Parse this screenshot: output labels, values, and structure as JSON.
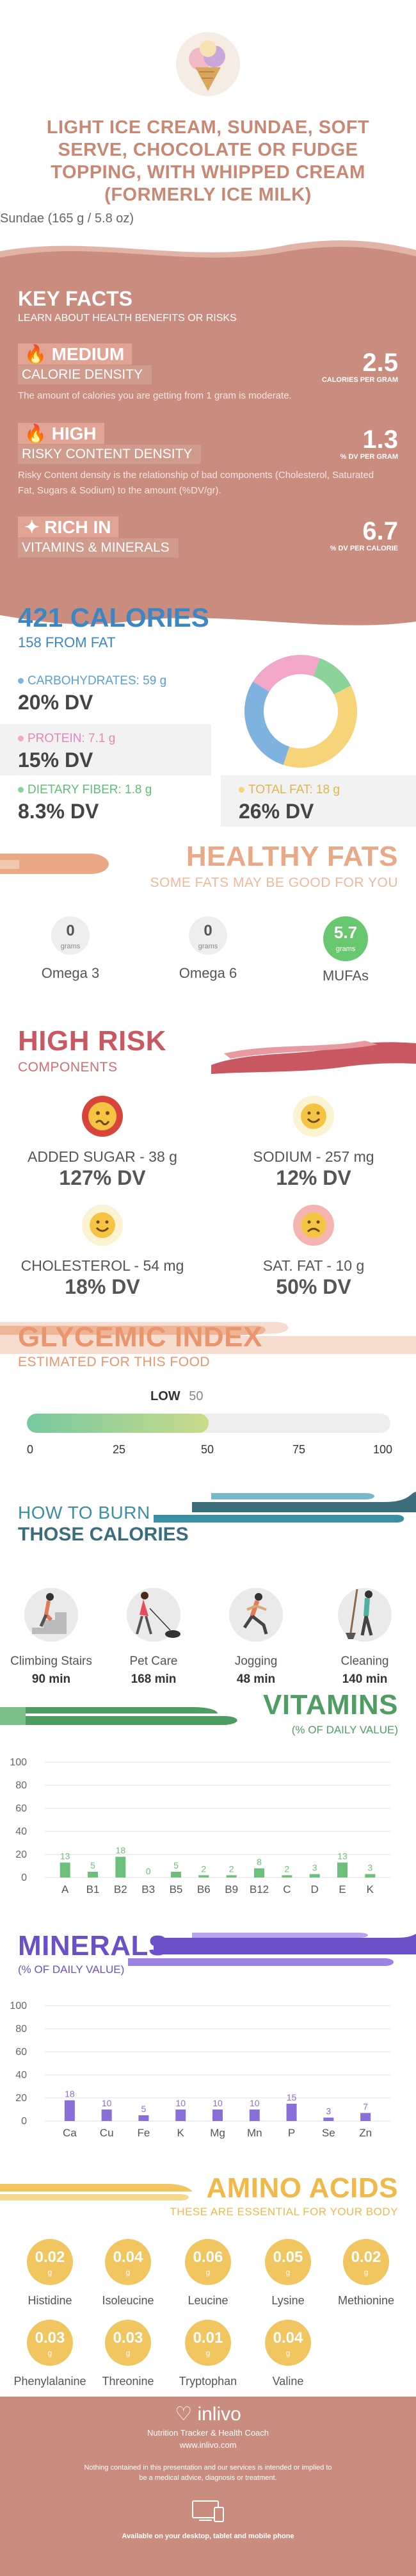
{
  "header": {
    "title": "LIGHT ICE CREAM, SUNDAE, SOFT SERVE, CHOCOLATE OR FUDGE TOPPING, WITH WHIPPED CREAM (FORMERLY ICE MILK)",
    "serving": "Sundae (165 g / 5.8 oz)"
  },
  "key_facts": {
    "title": "KEY FACTS",
    "subtitle": "LEARN ABOUT HEALTH BENEFITS OR RISKS",
    "items": [
      {
        "tag": "MEDIUM",
        "label": "CALORIE DENSITY",
        "value": "2.5",
        "unit": "CALORIES PER GRAM",
        "desc": "The amount of calories you are getting from 1 gram is moderate."
      },
      {
        "tag": "HIGH",
        "label": "RISKY CONTENT DENSITY",
        "value": "1.3",
        "unit": "% DV PER GRAM",
        "desc": "Risky Content density is the relationship of bad components (Cholesterol, Saturated Fat, Sugars & Sodium) to the amount (%DV/gr)."
      },
      {
        "tag": "RICH IN",
        "label": "VITAMINS & MINERALS",
        "value": "6.7",
        "unit": "% DV PER CALORIE"
      }
    ]
  },
  "calories": {
    "title": "421 CALORIES",
    "subtitle": "158 FROM FAT",
    "carbs_label": "CARBOHYDRATES: 59 g",
    "carbs_dv": "20% DV",
    "protein_label": "PROTEIN: 7.1 g",
    "protein_dv": "15% DV",
    "fiber_label": "DIETARY FIBER: 1.8 g",
    "fiber_dv": "8.3% DV",
    "fat_label": "TOTAL FAT: 18 g",
    "fat_dv": "26% DV",
    "colors": {
      "carbs": "#7fb2df",
      "protein": "#f2a6c8",
      "fiber": "#8cd39a",
      "fat": "#f6d47a"
    }
  },
  "healthy_fats": {
    "title": "HEALTHY FATS",
    "subtitle": "SOME FATS MAY BE GOOD FOR YOU",
    "unit": "grams",
    "items": [
      {
        "value": "0",
        "name": "Omega 3"
      },
      {
        "value": "0",
        "name": "Omega 6"
      },
      {
        "value": "5.7",
        "name": "MUFAs"
      }
    ]
  },
  "high_risk": {
    "title": "HIGH RISK",
    "subtitle": "COMPONENTS",
    "items": [
      {
        "label": "ADDED SUGAR - 38 g",
        "dv": "127% DV",
        "icon": "sick-face-icon"
      },
      {
        "label": "SODIUM - 257 mg",
        "dv": "12% DV",
        "icon": "happy-face-icon"
      },
      {
        "label": "CHOLESTEROL - 54 mg",
        "dv": "18% DV",
        "icon": "happy-face-icon"
      },
      {
        "label": "SAT. FAT - 10 g",
        "dv": "50% DV",
        "icon": "sad-face-icon"
      }
    ]
  },
  "glycemic": {
    "title": "GLYCEMIC INDEX",
    "subtitle": "ESTIMATED FOR THIS FOOD",
    "level": "LOW",
    "value": "50",
    "ticks": [
      "0",
      "25",
      "50",
      "75",
      "100"
    ],
    "fill_fraction": 0.5
  },
  "burn": {
    "title1": "HOW TO BURN",
    "title2": "THOSE CALORIES",
    "items": [
      {
        "name": "Climbing Stairs",
        "time": "90 min"
      },
      {
        "name": "Pet Care",
        "time": "168 min"
      },
      {
        "name": "Jogging",
        "time": "48 min"
      },
      {
        "name": "Cleaning",
        "time": "140 min"
      }
    ]
  },
  "chart_data": [
    {
      "type": "bar",
      "title": "VITAMINS",
      "subtitle": "(% OF DAILY VALUE)",
      "categories": [
        "A",
        "B1",
        "B2",
        "B3",
        "B5",
        "B6",
        "B9",
        "B12",
        "C",
        "D",
        "E",
        "K"
      ],
      "values": [
        13,
        5,
        18,
        0,
        5,
        2,
        2,
        8,
        2,
        3,
        13,
        3
      ],
      "yticks": [
        "100",
        "80",
        "60",
        "40",
        "20",
        "0"
      ],
      "ylim": [
        0,
        100
      ],
      "color": "#6fbf7c"
    },
    {
      "type": "bar",
      "title": "MINERALS",
      "subtitle": "(% OF DAILY VALUE)",
      "categories": [
        "Ca",
        "Cu",
        "Fe",
        "K",
        "Mg",
        "Mn",
        "P",
        "Se",
        "Zn"
      ],
      "values": [
        18,
        10,
        5,
        10,
        10,
        10,
        15,
        3,
        7
      ],
      "yticks": [
        "100",
        "80",
        "60",
        "40",
        "20",
        "0"
      ],
      "ylim": [
        0,
        100
      ],
      "color": "#8a6fd8"
    }
  ],
  "amino": {
    "title": "AMINO ACIDS",
    "subtitle": "THESE ARE ESSENTIAL FOR YOUR BODY",
    "unit": "g",
    "items": [
      {
        "value": "0.02",
        "name": "Histidine"
      },
      {
        "value": "0.04",
        "name": "Isoleucine"
      },
      {
        "value": "0.06",
        "name": "Leucine"
      },
      {
        "value": "0.05",
        "name": "Lysine"
      },
      {
        "value": "0.02",
        "name": "Methionine"
      },
      {
        "value": "0.03",
        "name": "Phenylalanine"
      },
      {
        "value": "0.03",
        "name": "Threonine"
      },
      {
        "value": "0.01",
        "name": "Tryptophan"
      },
      {
        "value": "0.04",
        "name": "Valine"
      }
    ]
  },
  "footer": {
    "brand": "inlivo",
    "tagline": "Nutrition Tracker & Health Coach",
    "url": "www.inlivo.com",
    "disclaimer": "Nothing contained in this presentation and our services is intended or implied to be a medical advice, diagnosis or treatment.",
    "available": "Available on your desktop, tablet and mobile phone"
  }
}
